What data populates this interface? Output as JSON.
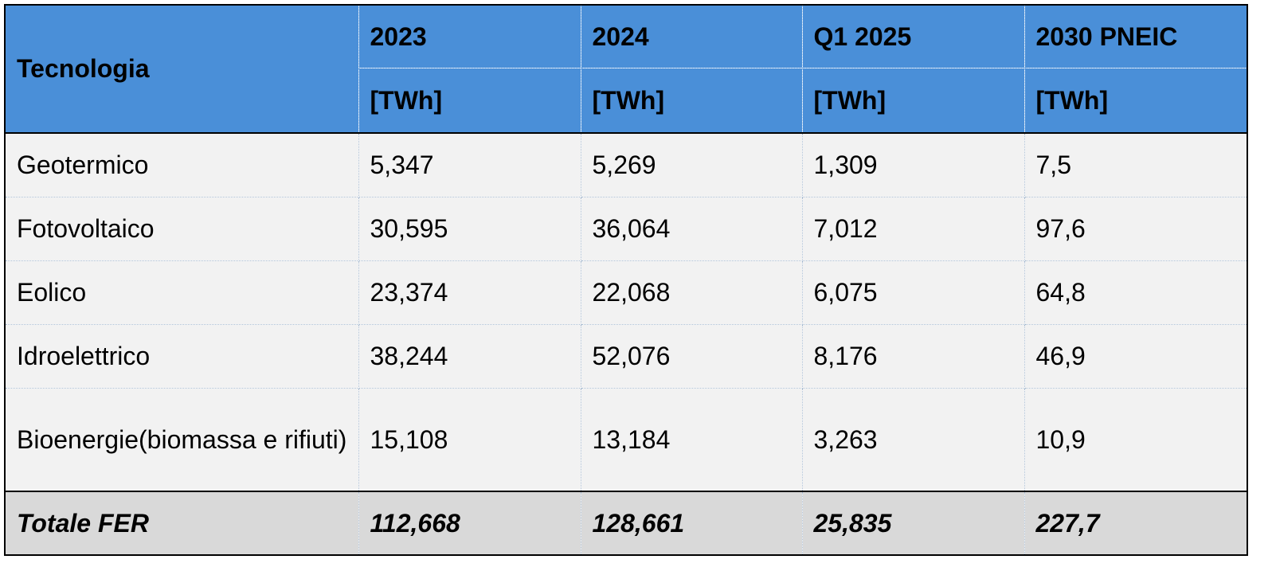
{
  "table": {
    "header": {
      "columns": [
        "Tecnologia",
        "2023",
        "2024",
        "Q1 2025",
        "2030 PNEIC"
      ],
      "units": [
        "[TWh]",
        "[TWh]",
        "[TWh]",
        "[TWh]"
      ]
    },
    "rows": [
      [
        "Geotermico",
        "5,347",
        "5,269",
        "1,309",
        "7,5"
      ],
      [
        "Fotovoltaico",
        "30,595",
        "36,064",
        "7,012",
        "97,6"
      ],
      [
        "Eolico",
        "23,374",
        "22,068",
        "6,075",
        "64,8"
      ],
      [
        "Idroelettrico",
        "38,244",
        "52,076",
        "8,176",
        "46,9"
      ],
      [
        "Bioenergie(biomassa e rifiuti)",
        "15,108",
        "13,184",
        "3,263",
        "10,9"
      ]
    ],
    "total": [
      "Totale FER",
      "112,668",
      "128,661",
      "25,835",
      "227,7"
    ]
  }
}
